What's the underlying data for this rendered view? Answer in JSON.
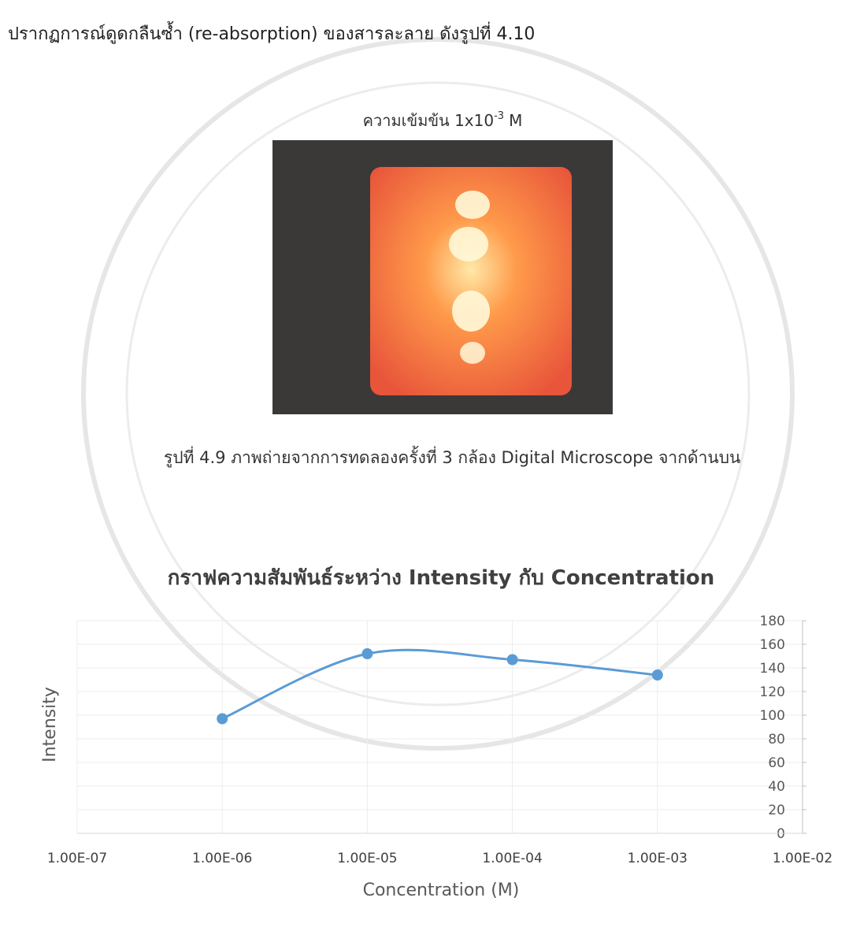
{
  "document": {
    "intro": "ปรากฏการณ์ดูดกลืนซ้ำ (re-absorption) ของสารละลาย ดังรูปที่ 4.10",
    "figure_label": "ความเข้มข้น 1x10",
    "figure_label_exponent": "-3",
    "figure_label_unit": "M",
    "caption": "รูปที่ 4.9 ภาพถ่ายจากการทดลองครั้งที่ 3 กล้อง Digital Microscope จากด้านบน"
  },
  "chart_data": {
    "type": "scatter",
    "title": "กราฟความสัมพันธ์ระหว่าง Intensity กับ Concentration",
    "x_label": "Concentration (M)",
    "y_label": "Intensity",
    "x": [
      1e-06,
      1e-05,
      0.0001,
      0.001
    ],
    "series": [
      {
        "color": "#5b9bd5",
        "values": [
          97,
          152,
          147,
          134
        ]
      }
    ],
    "smooth": true,
    "x_log_scale": true,
    "xlim": [
      1e-07,
      0.01
    ],
    "xticks": [
      {
        "value": 1e-07,
        "label": "1.00E-07"
      },
      {
        "value": 1e-06,
        "label": "1.00E-06"
      },
      {
        "value": 1e-05,
        "label": "1.00E-05"
      },
      {
        "value": 0.0001,
        "label": "1.00E-04"
      },
      {
        "value": 0.001,
        "label": "1.00E-03"
      },
      {
        "value": 0.01,
        "label": "1.00E-02"
      }
    ],
    "ylim": [
      0,
      180
    ],
    "yticks": [
      0,
      20,
      40,
      60,
      80,
      100,
      120,
      140,
      160,
      180
    ],
    "y_axis_side": "right",
    "grid": true
  }
}
